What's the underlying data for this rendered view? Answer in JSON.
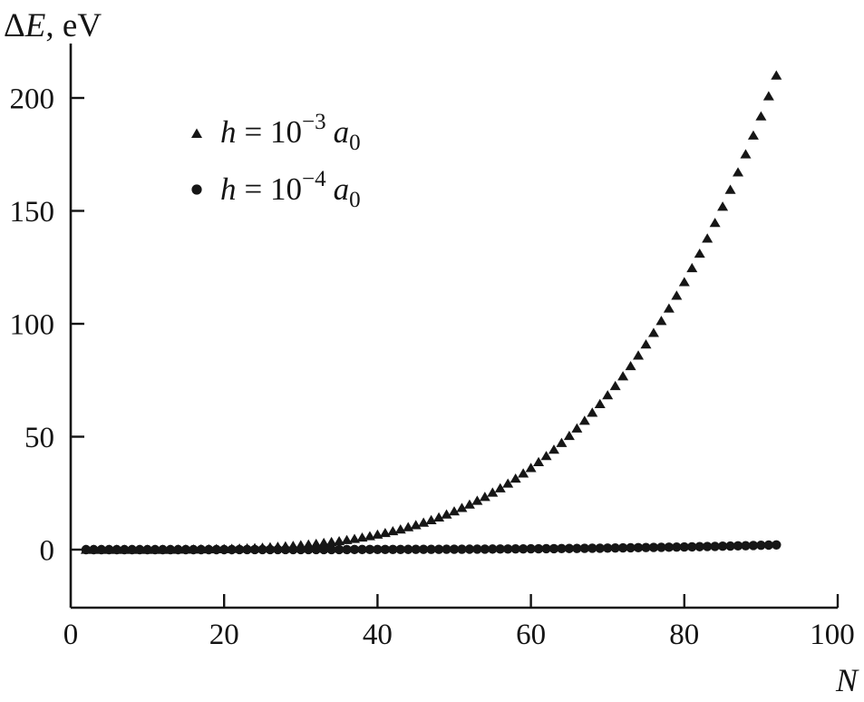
{
  "figure": {
    "background": "#ffffff",
    "ink_color": "#161616",
    "y_axis_title": {
      "delta": "Δ",
      "variable": "E",
      "rest": ", eV"
    },
    "x_axis_title": "N"
  },
  "legend": {
    "items": [
      {
        "marker": "triangle",
        "variable": "h",
        "equals_base": "= 10",
        "exponent": "−3",
        "unit": "a",
        "unit_sub": "0"
      },
      {
        "marker": "circle",
        "variable": "h",
        "equals_base": "= 10",
        "exponent": "−4",
        "unit": "a",
        "unit_sub": "0"
      }
    ]
  },
  "axes": {
    "y": {
      "ticks": [
        {
          "value": 0,
          "label": "0"
        },
        {
          "value": 50,
          "label": "50"
        },
        {
          "value": 100,
          "label": "100"
        },
        {
          "value": 150,
          "label": "150"
        },
        {
          "value": 200,
          "label": "200"
        }
      ]
    },
    "x": {
      "ticks": [
        {
          "value": 0,
          "label": "0",
          "tick_mark": false
        },
        {
          "value": 20,
          "label": "20",
          "tick_mark": true
        },
        {
          "value": 40,
          "label": "40",
          "tick_mark": true
        },
        {
          "value": 60,
          "label": "60",
          "tick_mark": true
        },
        {
          "value": 80,
          "label": "80",
          "tick_mark": true
        },
        {
          "value": 100,
          "label": "100",
          "tick_mark": true
        }
      ]
    }
  },
  "chart_data": {
    "type": "scatter",
    "title": "",
    "xlabel": "N",
    "ylabel": "ΔE, eV",
    "xlim": [
      0,
      100
    ],
    "ylim": [
      -26,
      224
    ],
    "grid": false,
    "legend_position": "upper-left-inset",
    "x_start": 2,
    "x_step": 1,
    "series": [
      {
        "name": "h = 10⁻³ a₀",
        "marker": "triangle",
        "color": "#161616",
        "values": [
          0,
          0,
          0,
          0,
          0,
          0,
          0,
          0,
          0,
          0,
          0,
          0,
          0.1,
          0.1,
          0.1,
          0.2,
          0.2,
          0.3,
          0.3,
          0.4,
          0.5,
          0.6,
          0.7,
          0.9,
          1.1,
          1.3,
          1.5,
          1.7,
          2.0,
          2.3,
          2.6,
          3.0,
          3.4,
          3.8,
          4.3,
          4.8,
          5.4,
          6.0,
          6.7,
          7.4,
          8.2,
          9.0,
          10.0,
          10.9,
          12.0,
          13.1,
          14.3,
          15.6,
          17.0,
          18.5,
          20.0,
          21.7,
          23.4,
          25.3,
          27.2,
          29.3,
          31.5,
          33.8,
          36.2,
          38.8,
          41.5,
          44.3,
          47.3,
          50.4,
          53.7,
          57.1,
          60.7,
          64.5,
          68.4,
          72.5,
          76.8,
          81.3,
          86.0,
          90.9,
          96.0,
          101.3,
          106.8,
          112.5,
          118.5,
          124.7,
          131.1,
          137.8,
          144.7,
          151.9,
          159.4,
          167.1,
          175.1,
          183.4,
          191.9,
          200.8,
          210.0
        ]
      },
      {
        "name": "h = 10⁻⁴ a₀",
        "marker": "circle",
        "color": "#161616",
        "values": [
          0,
          0,
          0,
          0,
          0,
          0,
          0,
          0,
          0,
          0,
          0,
          0,
          0,
          0,
          0,
          0,
          0,
          0,
          0,
          0,
          0.01,
          0.01,
          0.01,
          0.01,
          0.01,
          0.01,
          0.01,
          0.02,
          0.02,
          0.02,
          0.03,
          0.03,
          0.03,
          0.04,
          0.04,
          0.05,
          0.05,
          0.06,
          0.07,
          0.07,
          0.08,
          0.09,
          0.1,
          0.11,
          0.12,
          0.13,
          0.14,
          0.16,
          0.17,
          0.18,
          0.2,
          0.22,
          0.23,
          0.25,
          0.27,
          0.29,
          0.31,
          0.34,
          0.36,
          0.39,
          0.41,
          0.44,
          0.47,
          0.5,
          0.54,
          0.57,
          0.61,
          0.64,
          0.68,
          0.73,
          0.77,
          0.81,
          0.86,
          0.91,
          0.96,
          1.01,
          1.07,
          1.13,
          1.18,
          1.25,
          1.31,
          1.38,
          1.45,
          1.52,
          1.59,
          1.67,
          1.75,
          1.83,
          1.92,
          2.01,
          2.1
        ]
      }
    ]
  }
}
